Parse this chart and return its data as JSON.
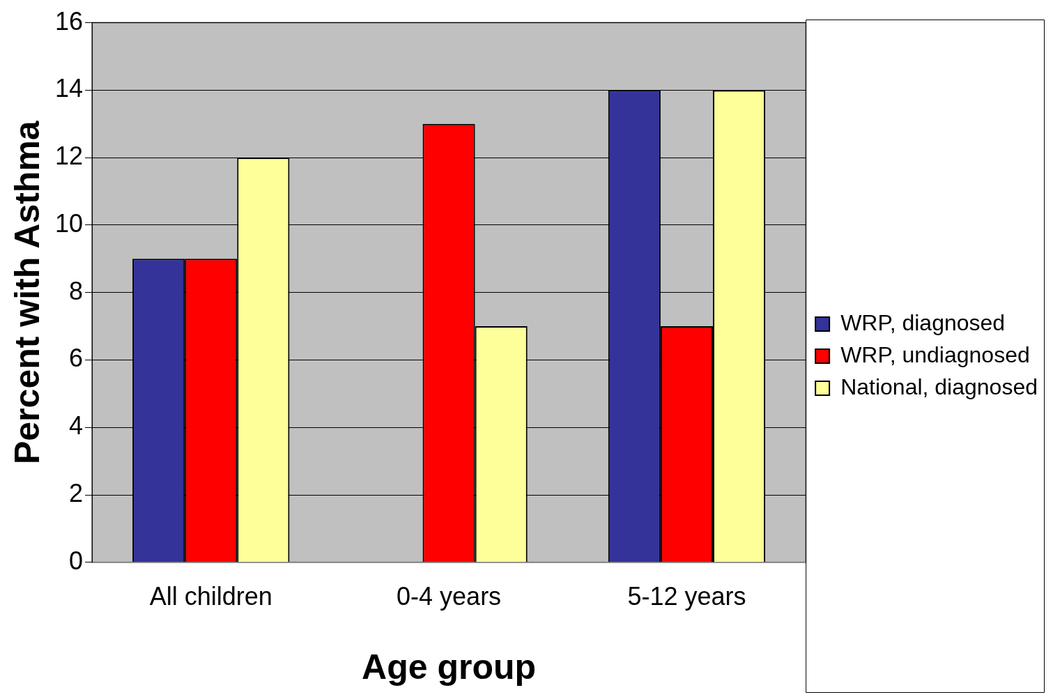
{
  "chart_data": {
    "type": "bar",
    "xlabel": "Age group",
    "ylabel": "Percent with Asthma",
    "categories": [
      "All children",
      "0-4 years",
      "5-12 years"
    ],
    "series": [
      {
        "name": "WRP, diagnosed",
        "color": "#333399",
        "values": [
          9,
          null,
          14
        ]
      },
      {
        "name": "WRP, undiagnosed",
        "color": "#ff0000",
        "values": [
          9,
          13,
          7
        ]
      },
      {
        "name": "National, diagnosed",
        "color": "#ffff99",
        "values": [
          12,
          7,
          14
        ]
      }
    ],
    "ylim": [
      0,
      16
    ],
    "yticks": [
      0,
      2,
      4,
      6,
      8,
      10,
      12,
      14,
      16
    ],
    "grid": "y",
    "legend": "right"
  }
}
